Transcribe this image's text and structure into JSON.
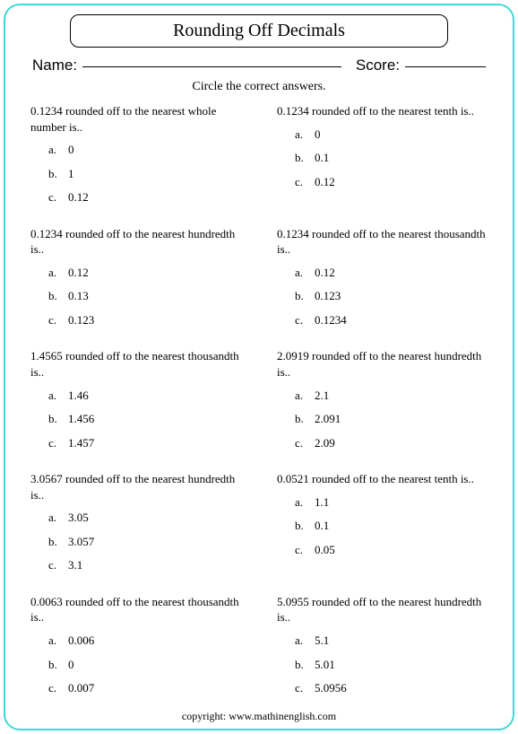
{
  "title": "Rounding Off Decimals",
  "labels": {
    "name": "Name:",
    "score": "Score:"
  },
  "instructions": "Circle the correct answers.",
  "questions": [
    {
      "text": "0.1234 rounded off to the nearest whole number is..",
      "choices": [
        "0",
        "1",
        "0.12"
      ]
    },
    {
      "text": "0.1234 rounded off to the nearest tenth is..",
      "choices": [
        "0",
        "0.1",
        "0.12"
      ]
    },
    {
      "text": "0.1234 rounded off to the nearest hundredth is..",
      "choices": [
        "0.12",
        "0.13",
        "0.123"
      ]
    },
    {
      "text": "0.1234 rounded off to the nearest thousandth is..",
      "choices": [
        "0.12",
        "0.123",
        "0.1234"
      ]
    },
    {
      "text": "1.4565 rounded off to the nearest thousandth is..",
      "choices": [
        "1.46",
        "1.456",
        "1.457"
      ]
    },
    {
      "text": "2.0919 rounded off to the nearest hundredth is..",
      "choices": [
        "2.1",
        "2.091",
        "2.09"
      ]
    },
    {
      "text": "3.0567 rounded off to the nearest hundredth is..",
      "choices": [
        "3.05",
        "3.057",
        "3.1"
      ]
    },
    {
      "text": "0.0521 rounded off to the nearest tenth is..",
      "choices": [
        "1.1",
        "0.1",
        "0.05"
      ]
    },
    {
      "text": "0.0063 rounded off to the nearest thousandth is..",
      "choices": [
        "0.006",
        "0",
        "0.007"
      ]
    },
    {
      "text": "5.0955 rounded off to the nearest hundredth is..",
      "choices": [
        "5.1",
        "5.01",
        "5.0956"
      ]
    }
  ],
  "choice_letters": [
    "a.",
    "b.",
    "c."
  ],
  "copyright": "copyright:   www.mathinenglish.com",
  "colors": {
    "border": "#3dd9d4",
    "text": "#000000",
    "background": "#ffffff"
  }
}
